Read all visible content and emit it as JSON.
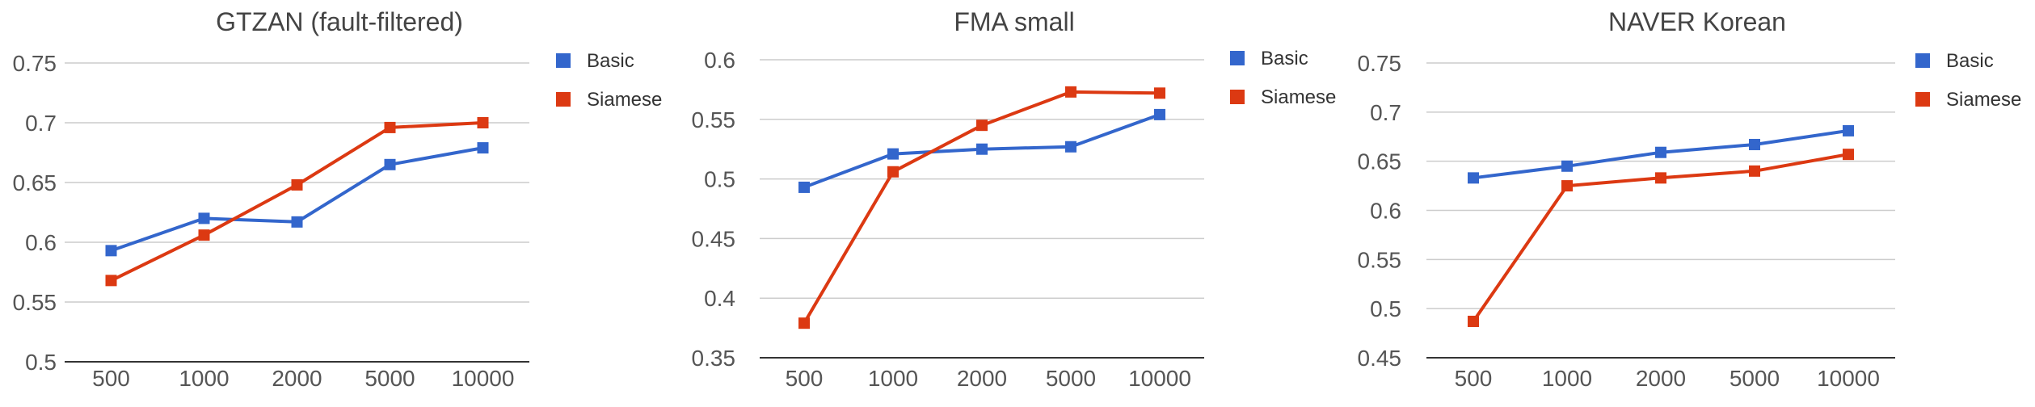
{
  "chart_data": [
    {
      "type": "line",
      "title": "GTZAN (fault-filtered)",
      "categories": [
        "500",
        "1000",
        "2000",
        "5000",
        "10000"
      ],
      "series": [
        {
          "name": "Basic",
          "color": "#3366cc",
          "values": [
            0.593,
            0.62,
            0.617,
            0.665,
            0.679
          ]
        },
        {
          "name": "Siamese",
          "color": "#dc3912",
          "values": [
            0.568,
            0.606,
            0.648,
            0.696,
            0.7
          ]
        }
      ],
      "yticks": [
        "0.5",
        "0.55",
        "0.6",
        "0.65",
        "0.7",
        "0.75"
      ],
      "ylim": [
        0.5,
        0.75
      ],
      "grid": true,
      "legend": "right"
    },
    {
      "type": "line",
      "title": "FMA small",
      "categories": [
        "500",
        "1000",
        "2000",
        "5000",
        "10000"
      ],
      "series": [
        {
          "name": "Basic",
          "color": "#3366cc",
          "values": [
            0.493,
            0.521,
            0.525,
            0.527,
            0.554
          ]
        },
        {
          "name": "Siamese",
          "color": "#dc3912",
          "values": [
            0.379,
            0.506,
            0.545,
            0.573,
            0.572
          ]
        }
      ],
      "yticks": [
        "0.35",
        "0.4",
        "0.45",
        "0.5",
        "0.55",
        "0.6"
      ],
      "ylim": [
        0.35,
        0.6
      ],
      "grid": true,
      "legend": "right"
    },
    {
      "type": "line",
      "title": "NAVER Korean",
      "categories": [
        "500",
        "1000",
        "2000",
        "5000",
        "10000"
      ],
      "series": [
        {
          "name": "Basic",
          "color": "#3366cc",
          "values": [
            0.633,
            0.645,
            0.659,
            0.667,
            0.681
          ]
        },
        {
          "name": "Siamese",
          "color": "#dc3912",
          "values": [
            0.487,
            0.625,
            0.633,
            0.64,
            0.657
          ]
        }
      ],
      "yticks": [
        "0.45",
        "0.5",
        "0.55",
        "0.6",
        "0.65",
        "0.7",
        "0.75"
      ],
      "ylim": [
        0.45,
        0.75
      ],
      "grid": true,
      "legend": "right"
    }
  ]
}
